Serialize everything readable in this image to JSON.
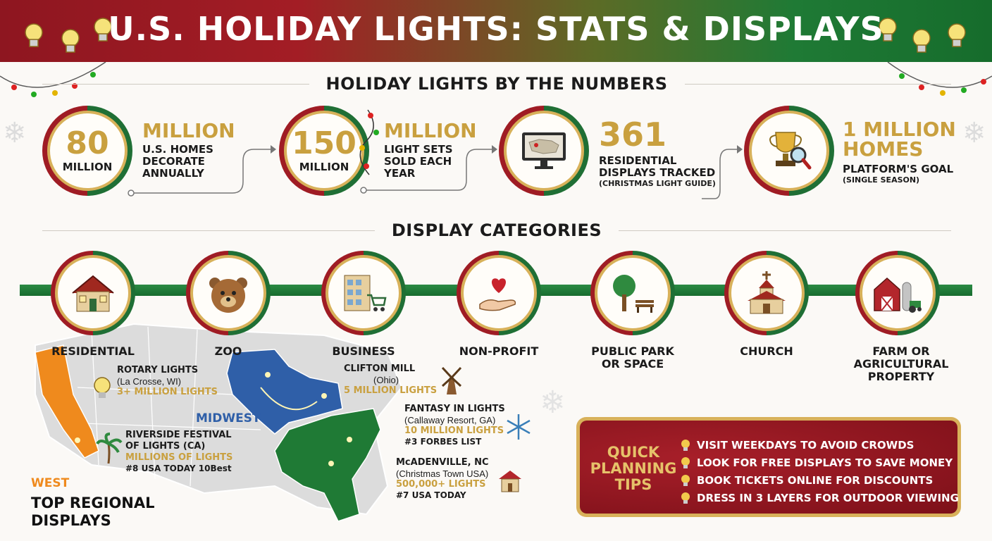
{
  "header": {
    "title": "U.S. HOLIDAY LIGHTS: STATS & DISPLAYS"
  },
  "sections": {
    "numbers": "HOLIDAY LIGHTS BY THE NUMBERS",
    "categories": "DISPLAY CATEGORIES"
  },
  "stats": [
    {
      "big": "80",
      "small": "MILLION",
      "head": "MILLION",
      "desc": [
        "U.S. HOMES",
        "DECORATE",
        "ANNUALLY"
      ],
      "note": ""
    },
    {
      "big": "150",
      "small": "MILLION",
      "head": "MILLION",
      "desc": [
        "LIGHT SETS",
        "SOLD EACH",
        "YEAR"
      ],
      "note": ""
    },
    {
      "icon": "monitor-map-icon",
      "head": "361",
      "desc": [
        "RESIDENTIAL",
        "DISPLAYS TRACKED"
      ],
      "note": "(CHRISTMAS LIGHT GUIDE)"
    },
    {
      "icon": "trophy-magnifier-icon",
      "head": "1 MILLION",
      "head2": "HOMES",
      "desc": [
        "PLATFORM'S GOAL"
      ],
      "note": "(SINGLE SEASON)"
    }
  ],
  "categories": [
    {
      "icon": "house-icon",
      "label": "RESIDENTIAL"
    },
    {
      "icon": "bear-icon",
      "label": "ZOO"
    },
    {
      "icon": "store-cart-icon",
      "label": "BUSINESS"
    },
    {
      "icon": "heart-hand-icon",
      "label": "NON-PROFIT"
    },
    {
      "icon": "tree-bench-icon",
      "label": "PUBLIC PARK",
      "label2": "OR SPACE"
    },
    {
      "icon": "church-icon",
      "label": "CHURCH"
    },
    {
      "icon": "barn-icon",
      "label": "FARM OR",
      "label2": "AGRICULTURAL",
      "label3": "PROPERTY"
    }
  ],
  "map": {
    "regions": {
      "west": "WEST",
      "midwest": "MIDWEST"
    },
    "title": [
      "TOP REGIONAL",
      "DISPLAYS"
    ],
    "displays": {
      "rotary": {
        "name": "ROTARY LIGHTS",
        "place": "(La Crosse, WI)",
        "lights": "3+ MILLION LIGHTS"
      },
      "clifton": {
        "name": "CLIFTON MILL",
        "place": "(Ohio)",
        "lights": "5 MILLION LIGHTS"
      },
      "riverside": {
        "name": "RIVERSIDE FESTIVAL",
        "name2": "OF LIGHTS (CA)",
        "lights": "MILLIONS OF LIGHTS",
        "rank": "#8 USA TODAY 10Best"
      },
      "fantasy": {
        "name": "FANTASY IN LIGHTS",
        "place": "(Callaway Resort, GA)",
        "lights": "10 MILLION LIGHTS",
        "rank": "#3 FORBES LIST"
      },
      "mcadenville": {
        "name": "McADENVILLE, NC",
        "place": "(Christmas Town USA)",
        "lights": "500,000+ LIGHTS",
        "rank": "#7 USA TODAY"
      }
    }
  },
  "tips": {
    "title": [
      "QUICK",
      "PLANNING",
      "TIPS"
    ],
    "items": [
      "VISIT WEEKDAYS TO AVOID CROWDS",
      "LOOK FOR FREE DISPLAYS TO SAVE MONEY",
      "BOOK TICKETS ONLINE FOR DISCOUNTS",
      "DRESS IN 3 LAYERS FOR OUTDOOR VIEWING"
    ]
  },
  "colors": {
    "red": "#9f1c24",
    "green": "#1f6f35",
    "gold": "#c9a03f",
    "blue": "#2f5fa8",
    "orange": "#ef8a1d"
  }
}
